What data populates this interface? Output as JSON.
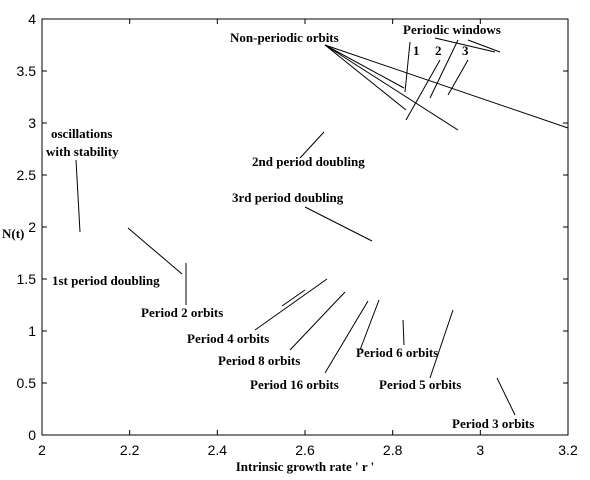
{
  "chart_data": {
    "type": "scatter",
    "title": "",
    "xlabel": "Intrinsic growth rate ' r '",
    "ylabel": "N(t)",
    "xlim": [
      2,
      3.2
    ],
    "ylim": [
      0,
      4
    ],
    "x_ticks": [
      "2",
      "2.2",
      "2.4",
      "2.6",
      "2.8",
      "3",
      "3.2"
    ],
    "y_ticks": [
      "0",
      "0.5",
      "1",
      "1.5",
      "2",
      "2.5",
      "3",
      "3.5",
      "4"
    ],
    "grid": false,
    "legend": "none",
    "point_color": "#0000cc",
    "model": "bifurcation diagram of N(t) versus r",
    "key_points": {
      "first_doubling_r": 2.2,
      "second_doubling_r": 2.65,
      "third_doubling_r": 2.75,
      "chaos_onset_r": 2.78,
      "period3_window_r": [
        3.03,
        3.06
      ]
    },
    "annotations": [
      {
        "id": "oscillations",
        "lines": [
          "oscillations",
          "with stability"
        ]
      },
      {
        "id": "first-doubling",
        "text": "1st period doubling"
      },
      {
        "id": "second-doubling",
        "text": "2nd period doubling"
      },
      {
        "id": "third-doubling",
        "text": "3rd period doubling"
      },
      {
        "id": "non-periodic",
        "text": "Non-periodic orbits"
      },
      {
        "id": "periodic-windows",
        "text": "Periodic windows"
      },
      {
        "id": "window-1",
        "text": "1"
      },
      {
        "id": "window-2",
        "text": "2"
      },
      {
        "id": "window-3",
        "text": "3"
      },
      {
        "id": "period-2",
        "text": "Period 2 orbits"
      },
      {
        "id": "period-4",
        "text": "Period 4 orbits"
      },
      {
        "id": "period-8",
        "text": "Period 8 orbits"
      },
      {
        "id": "period-16",
        "text": "Period 16 orbits"
      },
      {
        "id": "period-6",
        "text": "Period 6 orbits"
      },
      {
        "id": "period-5",
        "text": "Period 5 orbits"
      },
      {
        "id": "period-3",
        "text": "Period 3 orbits"
      }
    ]
  }
}
